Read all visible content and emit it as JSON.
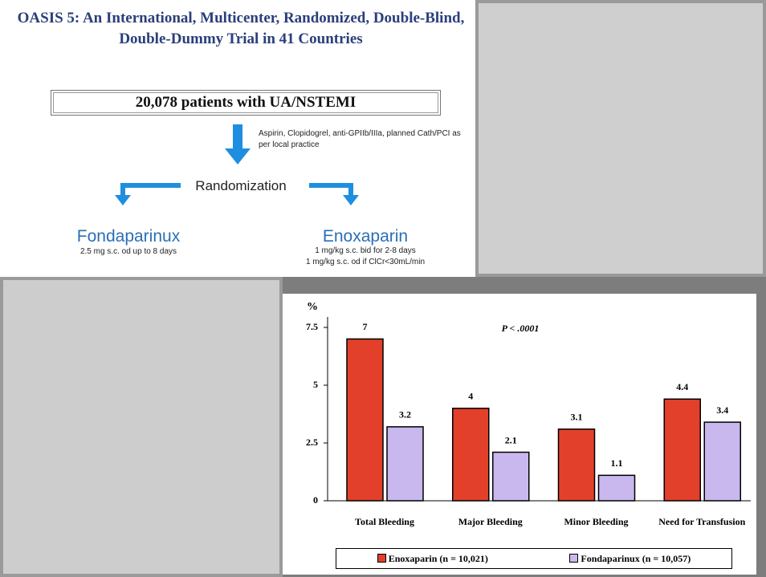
{
  "diagram": {
    "title": "OASIS 5: An International, Multicenter, Randomized, Double-Blind, Double-Dummy Trial in 41 Countries",
    "population": "20,078 patients with UA/NSTEMI",
    "note": "Aspirin, Clopidogrel, anti-GPIIb/IIIa, planned Cath/PCI as per local practice",
    "step": "Randomization",
    "arms": [
      {
        "name": "Fondaparinux",
        "dosing": [
          "2.5 mg s.c. od up to 8 days"
        ]
      },
      {
        "name": "Enoxaparin",
        "dosing": [
          "1 mg/kg s.c. bid for 2-8 days",
          "1 mg/kg s.c. od if ClCr<30mL/min"
        ]
      }
    ]
  },
  "chart_data": {
    "type": "bar",
    "y_label": "%",
    "annotation": "P < .0001",
    "categories": [
      "Total Bleeding",
      "Major Bleeding",
      "Minor Bleeding",
      "Need for Transfusion"
    ],
    "series": [
      {
        "name": "Enoxaparin (n = 10,021)",
        "color": "#e2402a",
        "values": [
          7,
          4,
          3.1,
          4.4
        ]
      },
      {
        "name": "Fondaparinux (n = 10,057)",
        "color": "#c8b8ee",
        "values": [
          3.2,
          2.1,
          1.1,
          3.4
        ]
      }
    ],
    "ylim": [
      0,
      7.5
    ],
    "yticks": [
      0,
      2.5,
      5,
      7.5
    ]
  }
}
